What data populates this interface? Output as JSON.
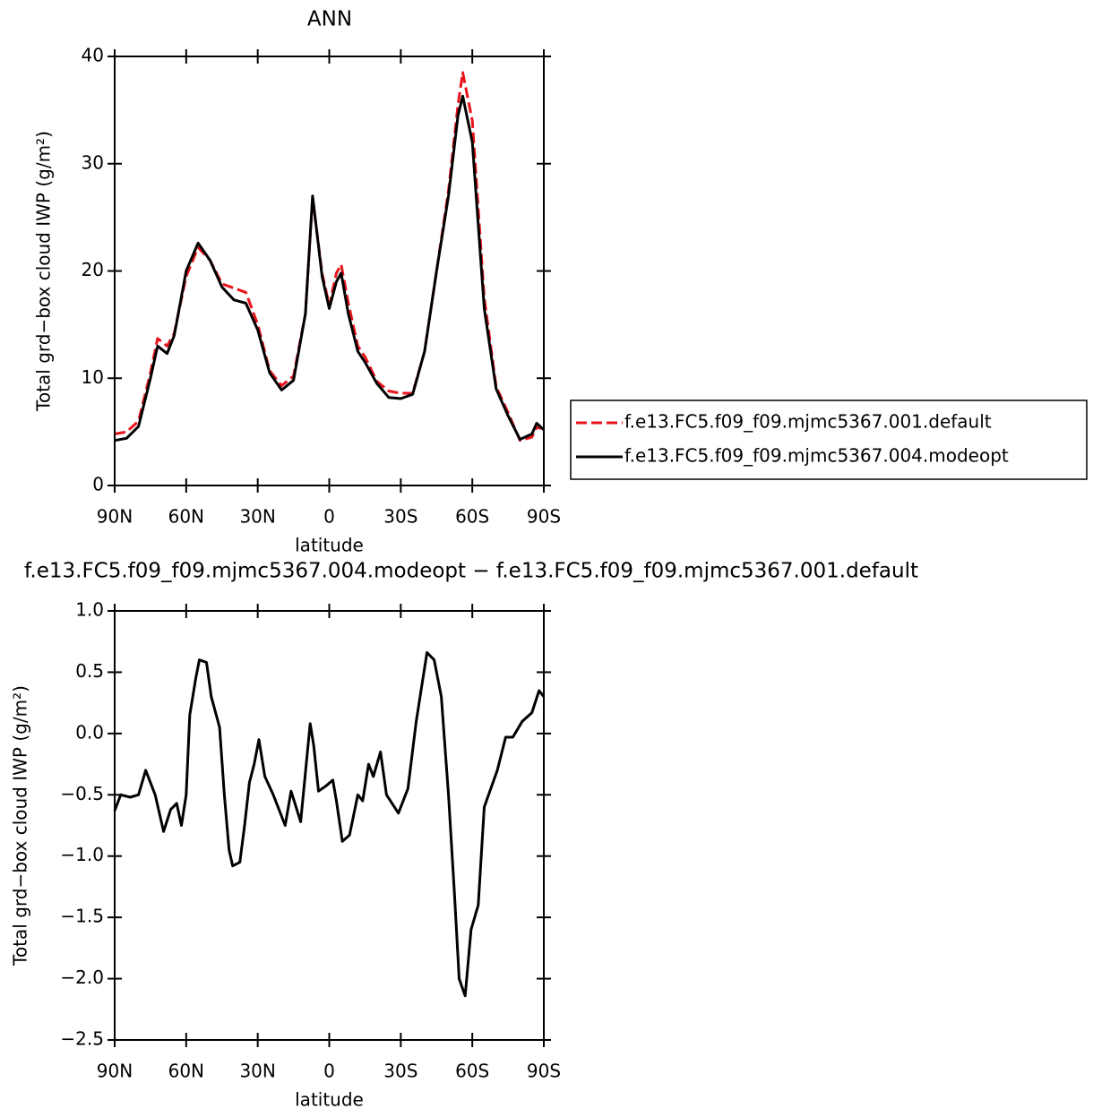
{
  "chart_data": [
    {
      "type": "line",
      "title": "ANN",
      "xlabel": "latitude",
      "ylabel": "Total grd−box cloud IWP (g/m²)",
      "x": [
        90,
        85,
        80,
        75,
        72,
        68,
        65,
        60,
        55,
        50,
        45,
        40,
        35,
        30,
        25,
        20,
        15,
        10,
        7,
        3,
        0,
        -3,
        -5,
        -8,
        -12,
        -15,
        -20,
        -25,
        -30,
        -35,
        -40,
        -45,
        -50,
        -54,
        -56,
        -60,
        -65,
        -70,
        -75,
        -80,
        -85,
        -87,
        -90
      ],
      "xlim": [
        90,
        -90
      ],
      "xticks": [
        {
          "value": 90,
          "label": "90N"
        },
        {
          "value": 60,
          "label": "60N"
        },
        {
          "value": 30,
          "label": "30N"
        },
        0,
        {
          "value": -30,
          "label": "30S"
        },
        {
          "value": -60,
          "label": "60S"
        },
        {
          "value": -90,
          "label": "90S"
        }
      ],
      "ylim": [
        0,
        40
      ],
      "yticks": [
        0,
        10,
        20,
        30,
        40
      ],
      "legend": true,
      "series": [
        {
          "name": "f.e13.FC5.f09_f09.mjmc5367.001.default",
          "color": "#e8141c",
          "line_style": "dashed",
          "values": [
            4.8,
            5.0,
            6.0,
            10.5,
            13.7,
            13.0,
            14.2,
            19.5,
            22.2,
            21.0,
            18.8,
            18.4,
            18.0,
            15.0,
            10.7,
            9.3,
            10.2,
            16.0,
            26.8,
            19.8,
            16.8,
            19.8,
            20.6,
            17.0,
            13.0,
            12.0,
            9.7,
            8.8,
            8.6,
            8.6,
            12.5,
            20.0,
            27.5,
            35.5,
            38.5,
            34.0,
            17.5,
            9.2,
            6.8,
            4.2,
            4.5,
            5.4,
            5.3
          ]
        },
        {
          "name": "f.e13.FC5.f09_f09.mjmc5367.004.modeopt",
          "color": "#000000",
          "line_style": "solid",
          "values": [
            4.2,
            4.4,
            5.5,
            10.0,
            13.0,
            12.3,
            14.0,
            20.0,
            22.6,
            21.0,
            18.5,
            17.3,
            17.0,
            14.5,
            10.5,
            8.9,
            9.8,
            16.0,
            27.0,
            19.5,
            16.5,
            19.0,
            19.8,
            16.0,
            12.5,
            11.5,
            9.5,
            8.2,
            8.1,
            8.5,
            12.5,
            20.0,
            27.0,
            34.5,
            36.3,
            32.0,
            16.5,
            9.0,
            6.5,
            4.3,
            4.8,
            5.8,
            5.2
          ]
        }
      ]
    },
    {
      "type": "line",
      "title": "f.e13.FC5.f09_f09.mjmc5367.004.modeopt − f.e13.FC5.f09_f09.mjmc5367.001.default",
      "xlabel": "latitude",
      "ylabel": "Total grd−box cloud IWP (g/m²)",
      "x": [
        90,
        87.5,
        83.5,
        80,
        77,
        73,
        69.5,
        66.5,
        64,
        62,
        60,
        58.5,
        56,
        54.5,
        51.5,
        49.5,
        46,
        44,
        42,
        40.5,
        37.5,
        35.5,
        33.5,
        31.5,
        29.5,
        27,
        23.5,
        18.5,
        16,
        12,
        8,
        6.5,
        4.5,
        1.5,
        -1.5,
        -3,
        -5.5,
        -8.5,
        -12,
        -14,
        -16.5,
        -18.5,
        -21.5,
        -24,
        -29,
        -33,
        -36.5,
        -41,
        -44,
        -47,
        -50,
        -52.5,
        -54.5,
        -57,
        -59.5,
        -62.5,
        -65,
        -70.5,
        -74,
        -77,
        -81,
        -85,
        -88,
        -90
      ],
      "xlim": [
        90,
        -90
      ],
      "xticks": [
        {
          "value": 90,
          "label": "90N"
        },
        {
          "value": 60,
          "label": "60N"
        },
        {
          "value": 30,
          "label": "30N"
        },
        0,
        {
          "value": -30,
          "label": "30S"
        },
        {
          "value": -60,
          "label": "60S"
        },
        {
          "value": -90,
          "label": "90S"
        }
      ],
      "ylim": [
        -2.5,
        1.0
      ],
      "yticks": [
        {
          "value": -2.5,
          "label": "−2.5"
        },
        {
          "value": -2,
          "label": "−2.0"
        },
        {
          "value": -1.5,
          "label": "−1.5"
        },
        {
          "value": -1,
          "label": "−1.0"
        },
        {
          "value": -0.5,
          "label": "−0.5"
        },
        {
          "value": 0,
          "label": "0.0"
        },
        0.5,
        {
          "value": 1,
          "label": "1.0"
        }
      ],
      "legend": false,
      "series": [
        {
          "color": "#000000",
          "line_style": "solid",
          "values": [
            -0.63,
            -0.5,
            -0.52,
            -0.5,
            -0.3,
            -0.5,
            -0.8,
            -0.62,
            -0.57,
            -0.75,
            -0.5,
            0.15,
            0.45,
            0.6,
            0.58,
            0.3,
            0.05,
            -0.5,
            -0.95,
            -1.08,
            -1.05,
            -0.75,
            -0.4,
            -0.25,
            -0.05,
            -0.35,
            -0.5,
            -0.75,
            -0.47,
            -0.72,
            0.08,
            -0.1,
            -0.47,
            -0.43,
            -0.38,
            -0.55,
            -0.88,
            -0.83,
            -0.5,
            -0.55,
            -0.25,
            -0.35,
            -0.15,
            -0.5,
            -0.65,
            -0.45,
            0.1,
            0.66,
            0.6,
            0.3,
            -0.5,
            -1.3,
            -2.0,
            -2.14,
            -1.6,
            -1.4,
            -0.6,
            -0.3,
            -0.03,
            -0.03,
            0.1,
            0.17,
            0.35,
            0.3
          ]
        }
      ]
    }
  ]
}
